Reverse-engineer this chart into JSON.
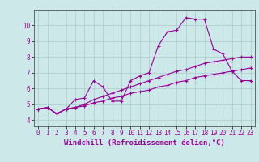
{
  "xlabel": "Windchill (Refroidissement éolien,°C)",
  "bg_color": "#cce8e8",
  "line_color": "#990099",
  "grid_color": "#aacccc",
  "x_ticks": [
    0,
    1,
    2,
    3,
    4,
    5,
    6,
    7,
    8,
    9,
    10,
    11,
    12,
    13,
    14,
    15,
    16,
    17,
    18,
    19,
    20,
    21,
    22,
    23
  ],
  "y_ticks": [
    4,
    5,
    6,
    7,
    8,
    9,
    10
  ],
  "ylim": [
    3.6,
    11.0
  ],
  "xlim": [
    -0.5,
    23.5
  ],
  "line1_x": [
    0,
    1,
    2,
    3,
    4,
    5,
    6,
    7,
    8,
    9,
    10,
    11,
    12,
    13,
    14,
    15,
    16,
    17,
    18,
    19,
    20,
    21,
    22,
    23
  ],
  "line1_y": [
    4.7,
    4.8,
    4.4,
    4.7,
    5.3,
    5.4,
    6.5,
    6.1,
    5.2,
    5.2,
    6.5,
    6.8,
    7.0,
    8.7,
    9.6,
    9.7,
    10.5,
    10.4,
    10.4,
    8.5,
    8.2,
    7.1,
    6.5,
    6.5
  ],
  "line2_x": [
    0,
    1,
    2,
    3,
    4,
    5,
    6,
    7,
    8,
    9,
    10,
    11,
    12,
    13,
    14,
    15,
    16,
    17,
    18,
    19,
    20,
    21,
    22,
    23
  ],
  "line2_y": [
    4.7,
    4.8,
    4.4,
    4.7,
    4.8,
    5.0,
    5.3,
    5.5,
    5.7,
    5.9,
    6.1,
    6.3,
    6.5,
    6.7,
    6.9,
    7.1,
    7.2,
    7.4,
    7.6,
    7.7,
    7.8,
    7.9,
    8.0,
    8.0
  ],
  "line3_x": [
    0,
    1,
    2,
    3,
    4,
    5,
    6,
    7,
    8,
    9,
    10,
    11,
    12,
    13,
    14,
    15,
    16,
    17,
    18,
    19,
    20,
    21,
    22,
    23
  ],
  "line3_y": [
    4.7,
    4.8,
    4.4,
    4.7,
    4.8,
    4.9,
    5.1,
    5.2,
    5.4,
    5.5,
    5.7,
    5.8,
    5.9,
    6.1,
    6.2,
    6.4,
    6.5,
    6.7,
    6.8,
    6.9,
    7.0,
    7.1,
    7.2,
    7.3
  ],
  "tick_fontsize": 5.5,
  "label_fontsize": 6.5
}
